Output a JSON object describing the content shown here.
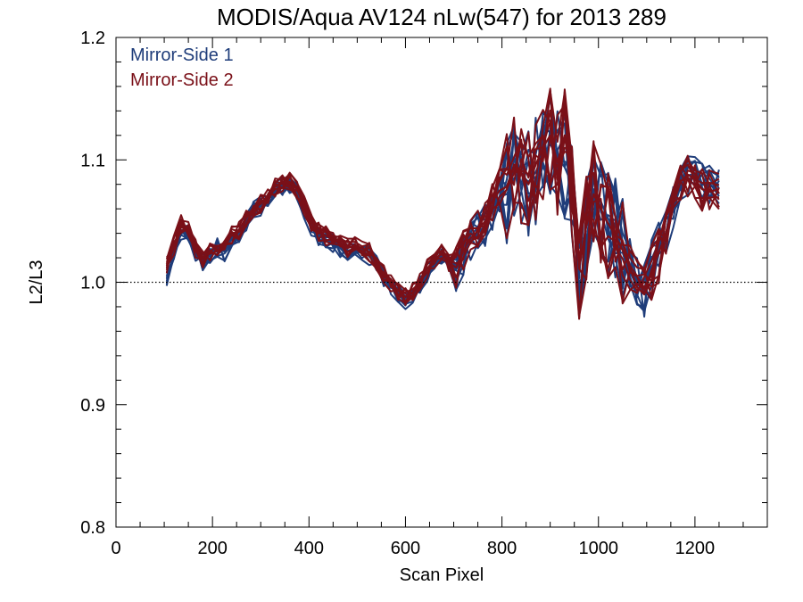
{
  "chart_data": {
    "type": "line",
    "title": "MODIS/Aqua AV124 nLw(547) for 2013 289",
    "xlabel": "Scan Pixel",
    "ylabel": "L2/L3",
    "xlim": [
      0,
      1350
    ],
    "ylim": [
      0.8,
      1.2
    ],
    "xticks": [
      0,
      200,
      400,
      600,
      800,
      1000,
      1200
    ],
    "xtick_labels": [
      "0",
      "200",
      "400",
      "600",
      "800",
      "1000",
      "1200"
    ],
    "yticks": [
      0.8,
      0.9,
      1.0,
      1.1,
      1.2
    ],
    "ytick_labels": [
      "0.8",
      "0.9",
      "1.0",
      "1.1",
      "1.2"
    ],
    "x_minor_step": 50,
    "y_minor_step": 0.02,
    "grid": false,
    "legend_position": "top-left",
    "reference_line": {
      "y": 1.0,
      "style": "dotted"
    },
    "x": [
      105,
      120,
      135,
      150,
      165,
      180,
      195,
      210,
      225,
      240,
      255,
      270,
      285,
      300,
      315,
      330,
      345,
      360,
      375,
      390,
      405,
      420,
      435,
      450,
      465,
      480,
      495,
      510,
      525,
      540,
      555,
      570,
      585,
      600,
      615,
      630,
      645,
      660,
      675,
      690,
      705,
      720,
      735,
      750,
      765,
      780,
      795,
      810,
      825,
      840,
      855,
      870,
      885,
      900,
      915,
      930,
      945,
      960,
      975,
      990,
      1005,
      1020,
      1035,
      1050,
      1065,
      1080,
      1095,
      1110,
      1125,
      1140,
      1155,
      1170,
      1185,
      1200,
      1215,
      1230,
      1250
    ],
    "series": [
      {
        "name": "Mirror-Side 1",
        "color": "#1f3d7a",
        "values": [
          1.005,
          1.022,
          1.042,
          1.04,
          1.025,
          1.016,
          1.022,
          1.028,
          1.025,
          1.036,
          1.04,
          1.05,
          1.058,
          1.062,
          1.068,
          1.075,
          1.079,
          1.08,
          1.073,
          1.06,
          1.046,
          1.038,
          1.035,
          1.032,
          1.028,
          1.026,
          1.027,
          1.025,
          1.022,
          1.014,
          1.004,
          0.998,
          0.99,
          0.985,
          0.99,
          0.999,
          1.008,
          1.016,
          1.02,
          1.018,
          1.01,
          1.024,
          1.034,
          1.04,
          1.046,
          1.06,
          1.07,
          1.072,
          1.085,
          1.088,
          1.082,
          1.09,
          1.104,
          1.113,
          1.102,
          1.094,
          1.08,
          1.01,
          1.048,
          1.076,
          1.066,
          1.052,
          1.04,
          1.028,
          1.015,
          1.0,
          0.995,
          1.012,
          1.026,
          1.04,
          1.06,
          1.078,
          1.087,
          1.089,
          1.08,
          1.078,
          1.08
        ]
      },
      {
        "name": "Mirror-Side 2",
        "color": "#7a1018",
        "values": [
          1.015,
          1.03,
          1.047,
          1.043,
          1.028,
          1.02,
          1.025,
          1.03,
          1.029,
          1.039,
          1.043,
          1.053,
          1.061,
          1.064,
          1.071,
          1.078,
          1.082,
          1.082,
          1.076,
          1.063,
          1.049,
          1.041,
          1.038,
          1.035,
          1.031,
          1.028,
          1.03,
          1.028,
          1.025,
          1.018,
          1.006,
          1.0,
          0.993,
          0.988,
          0.992,
          1.002,
          1.011,
          1.019,
          1.023,
          1.016,
          1.012,
          1.026,
          1.036,
          1.042,
          1.05,
          1.066,
          1.075,
          1.078,
          1.094,
          1.09,
          1.08,
          1.096,
          1.11,
          1.12,
          1.098,
          1.12,
          1.084,
          1.012,
          1.046,
          1.072,
          1.06,
          1.048,
          1.038,
          1.026,
          1.012,
          0.996,
          0.99,
          1.01,
          1.024,
          1.04,
          1.064,
          1.082,
          1.088,
          1.084,
          1.076,
          1.074,
          1.076
        ]
      }
    ]
  }
}
